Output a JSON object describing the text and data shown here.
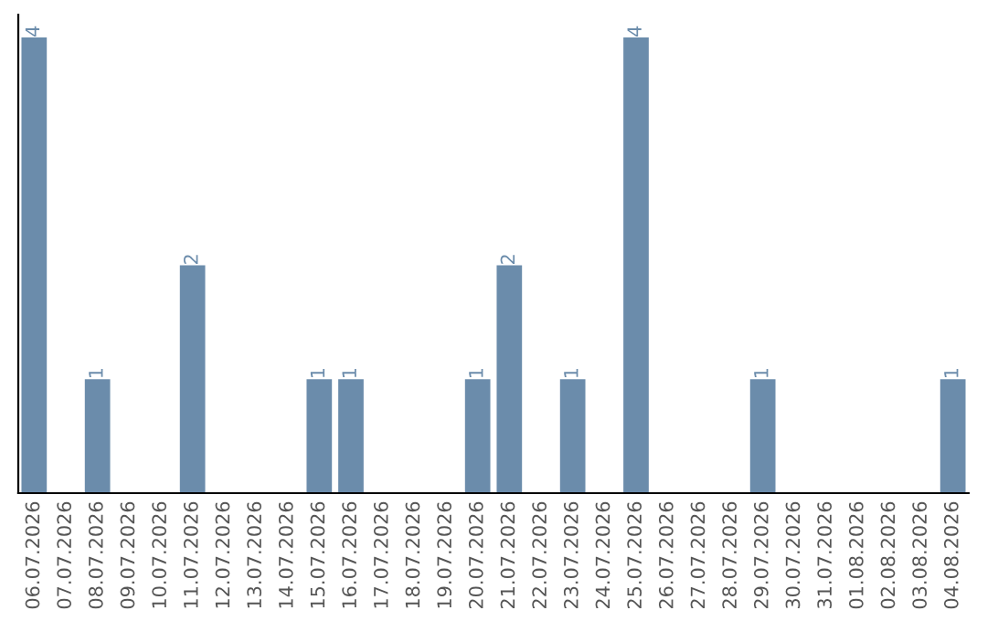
{
  "chart_data": {
    "type": "bar",
    "categories": [
      "06.07.2026",
      "07.07.2026",
      "08.07.2026",
      "09.07.2026",
      "10.07.2026",
      "11.07.2026",
      "12.07.2026",
      "13.07.2026",
      "14.07.2026",
      "15.07.2026",
      "16.07.2026",
      "17.07.2026",
      "18.07.2026",
      "19.07.2026",
      "20.07.2026",
      "21.07.2026",
      "22.07.2026",
      "23.07.2026",
      "24.07.2026",
      "25.07.2026",
      "26.07.2026",
      "27.07.2026",
      "28.07.2026",
      "29.07.2026",
      "30.07.2026",
      "31.07.2026",
      "01.08.2026",
      "02.08.2026",
      "03.08.2026",
      "04.08.2026"
    ],
    "values": [
      4,
      0,
      1,
      0,
      0,
      2,
      0,
      0,
      0,
      1,
      1,
      0,
      0,
      0,
      1,
      2,
      0,
      1,
      0,
      4,
      0,
      0,
      0,
      1,
      0,
      0,
      0,
      0,
      0,
      1
    ],
    "value_labels": [
      "4",
      null,
      "1",
      null,
      null,
      "2",
      null,
      null,
      null,
      "1",
      "1",
      null,
      null,
      null,
      "1",
      "2",
      null,
      "1",
      null,
      "4",
      null,
      null,
      null,
      "1",
      null,
      null,
      null,
      null,
      null,
      "1"
    ],
    "color": "#6b8cab",
    "tick_labels": "x",
    "grid": false,
    "legend": false
  }
}
